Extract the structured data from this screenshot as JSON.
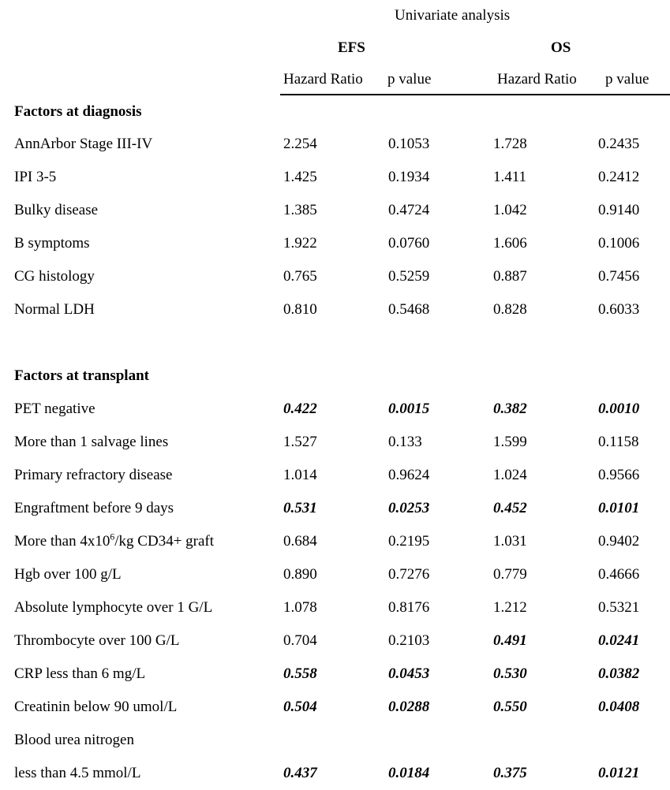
{
  "page": {
    "background_color": "#ffffff",
    "text_color": "#000000"
  },
  "table": {
    "title": "Univariate analysis",
    "groups": [
      {
        "label": "EFS"
      },
      {
        "label": "OS"
      }
    ],
    "columns": [
      "Hazard Ratio",
      "p value",
      "Hazard Ratio",
      "p value"
    ],
    "sections": [
      {
        "header": "Factors at diagnosis",
        "rows": [
          {
            "label": "AnnArbor Stage III-IV",
            "values": [
              "2.254",
              "0.1053",
              "1.728",
              "0.2435"
            ],
            "bold": [
              false,
              false,
              false,
              false
            ]
          },
          {
            "label": "IPI 3-5",
            "values": [
              "1.425",
              "0.1934",
              "1.411",
              "0.2412"
            ],
            "bold": [
              false,
              false,
              false,
              false
            ]
          },
          {
            "label": "Bulky disease",
            "values": [
              "1.385",
              "0.4724",
              "1.042",
              "0.9140"
            ],
            "bold": [
              false,
              false,
              false,
              false
            ]
          },
          {
            "label": "B symptoms",
            "values": [
              "1.922",
              "0.0760",
              "1.606",
              "0.1006"
            ],
            "bold": [
              false,
              false,
              false,
              false
            ]
          },
          {
            "label": "CG histology",
            "values": [
              "0.765",
              "0.5259",
              "0.887",
              "0.7456"
            ],
            "bold": [
              false,
              false,
              false,
              false
            ]
          },
          {
            "label": "Normal LDH",
            "values": [
              "0.810",
              "0.5468",
              "0.828",
              "0.6033"
            ],
            "bold": [
              false,
              false,
              false,
              false
            ]
          }
        ]
      },
      {
        "header": "Factors at transplant",
        "rows": [
          {
            "label": "PET negative",
            "values": [
              "0.422",
              "0.0015",
              "0.382",
              "0.0010"
            ],
            "bold": [
              true,
              true,
              true,
              true
            ]
          },
          {
            "label": "More than 1 salvage lines",
            "values": [
              "1.527",
              "0.133",
              "1.599",
              "0.1158"
            ],
            "bold": [
              false,
              false,
              false,
              false
            ]
          },
          {
            "label": "Primary refractory disease",
            "values": [
              "1.014",
              "0.9624",
              "1.024",
              "0.9566"
            ],
            "bold": [
              false,
              false,
              false,
              false
            ]
          },
          {
            "label": "Engraftment before 9 days",
            "values": [
              "0.531",
              "0.0253",
              "0.452",
              "0.0101"
            ],
            "bold": [
              true,
              true,
              true,
              true
            ]
          },
          {
            "label": "More than 4x10(6)/kg CD34+ graft",
            "label_parts": [
              {
                "text": "More than 4x10"
              },
              {
                "text": "6",
                "sup": true
              },
              {
                "text": "/kg CD34+ graft"
              }
            ],
            "values": [
              "0.684",
              "0.2195",
              "1.031",
              "0.9402"
            ],
            "bold": [
              false,
              false,
              false,
              false
            ]
          },
          {
            "label": "Hgb over 100 g/L",
            "values": [
              "0.890",
              "0.7276",
              "0.779",
              "0.4666"
            ],
            "bold": [
              false,
              false,
              false,
              false
            ]
          },
          {
            "label": "Absolute lymphocyte over 1 G/L",
            "values": [
              "1.078",
              "0.8176",
              "1.212",
              "0.5321"
            ],
            "bold": [
              false,
              false,
              false,
              false
            ]
          },
          {
            "label": "Thrombocyte over 100 G/L",
            "values": [
              "0.704",
              "0.2103",
              "0.491",
              "0.0241"
            ],
            "bold": [
              false,
              false,
              true,
              true
            ]
          },
          {
            "label": "CRP less than 6 mg/L",
            "values": [
              "0.558",
              "0.0453",
              "0.530",
              "0.0382"
            ],
            "bold": [
              true,
              true,
              true,
              true
            ]
          },
          {
            "label": "Creatinin below 90 umol/L",
            "values": [
              "0.504",
              "0.0288",
              "0.550",
              "0.0408"
            ],
            "bold": [
              true,
              true,
              true,
              true
            ]
          },
          {
            "label": "Blood urea nitrogen",
            "values": [
              "",
              "",
              "",
              ""
            ],
            "bold": [
              false,
              false,
              false,
              false
            ]
          },
          {
            "label": "less than 4.5 mmol/L",
            "values": [
              "0.437",
              "0.0184",
              "0.375",
              "0.0121"
            ],
            "bold": [
              true,
              true,
              true,
              true
            ]
          }
        ]
      }
    ]
  }
}
